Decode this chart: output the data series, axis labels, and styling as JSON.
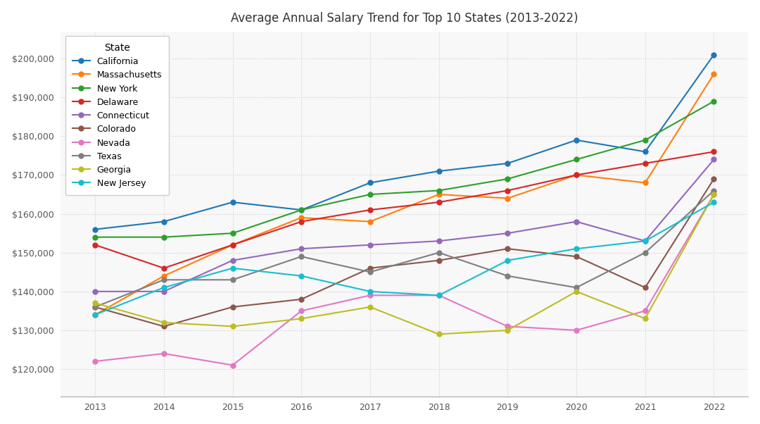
{
  "title": "Average Annual Salary Trend for Top 10 States (2013-2022)",
  "years": [
    2013,
    2014,
    2015,
    2016,
    2017,
    2018,
    2019,
    2020,
    2021,
    2022
  ],
  "series": [
    {
      "name": "California",
      "color": "#1f77b4",
      "values": [
        156000,
        158000,
        163000,
        161000,
        168000,
        171000,
        173000,
        179000,
        176000,
        201000
      ]
    },
    {
      "name": "Massachusetts",
      "color": "#ff7f0e",
      "values": [
        134000,
        144000,
        152000,
        159000,
        158000,
        165000,
        164000,
        170000,
        168000,
        196000
      ]
    },
    {
      "name": "New York",
      "color": "#2ca02c",
      "values": [
        154000,
        154000,
        155000,
        161000,
        165000,
        166000,
        169000,
        174000,
        179000,
        189000
      ]
    },
    {
      "name": "Delaware",
      "color": "#d62728",
      "values": [
        152000,
        146000,
        152000,
        158000,
        161000,
        163000,
        166000,
        170000,
        173000,
        176000
      ]
    },
    {
      "name": "Connecticut",
      "color": "#9467bd",
      "values": [
        140000,
        140000,
        148000,
        151000,
        152000,
        153000,
        155000,
        158000,
        153000,
        174000
      ]
    },
    {
      "name": "Colorado",
      "color": "#8c564b",
      "values": [
        136000,
        131000,
        136000,
        138000,
        146000,
        148000,
        151000,
        149000,
        141000,
        169000
      ]
    },
    {
      "name": "Nevada",
      "color": "#e377c2",
      "values": [
        122000,
        124000,
        121000,
        135000,
        139000,
        139000,
        131000,
        130000,
        135000,
        165000
      ]
    },
    {
      "name": "Texas",
      "color": "#7f7f7f",
      "values": [
        136000,
        143000,
        143000,
        149000,
        145000,
        150000,
        144000,
        141000,
        150000,
        166000
      ]
    },
    {
      "name": "Georgia",
      "color": "#bcbd22",
      "values": [
        137000,
        132000,
        131000,
        133000,
        136000,
        129000,
        130000,
        140000,
        133000,
        165000
      ]
    },
    {
      "name": "New Jersey",
      "color": "#17becf",
      "values": [
        134000,
        141000,
        146000,
        144000,
        140000,
        139000,
        148000,
        151000,
        153000,
        163000
      ]
    }
  ],
  "ylim": [
    113000,
    207000
  ],
  "ytick_values": [
    120000,
    130000,
    140000,
    150000,
    160000,
    170000,
    180000,
    190000,
    200000
  ],
  "background_color": "#ffffff",
  "plot_bg_color": "#f8f8f8",
  "grid_color": "#cccccc",
  "title_fontsize": 12,
  "tick_fontsize": 9,
  "legend_fontsize": 9,
  "legend_title_fontsize": 10,
  "linewidth": 1.5,
  "markersize": 5
}
